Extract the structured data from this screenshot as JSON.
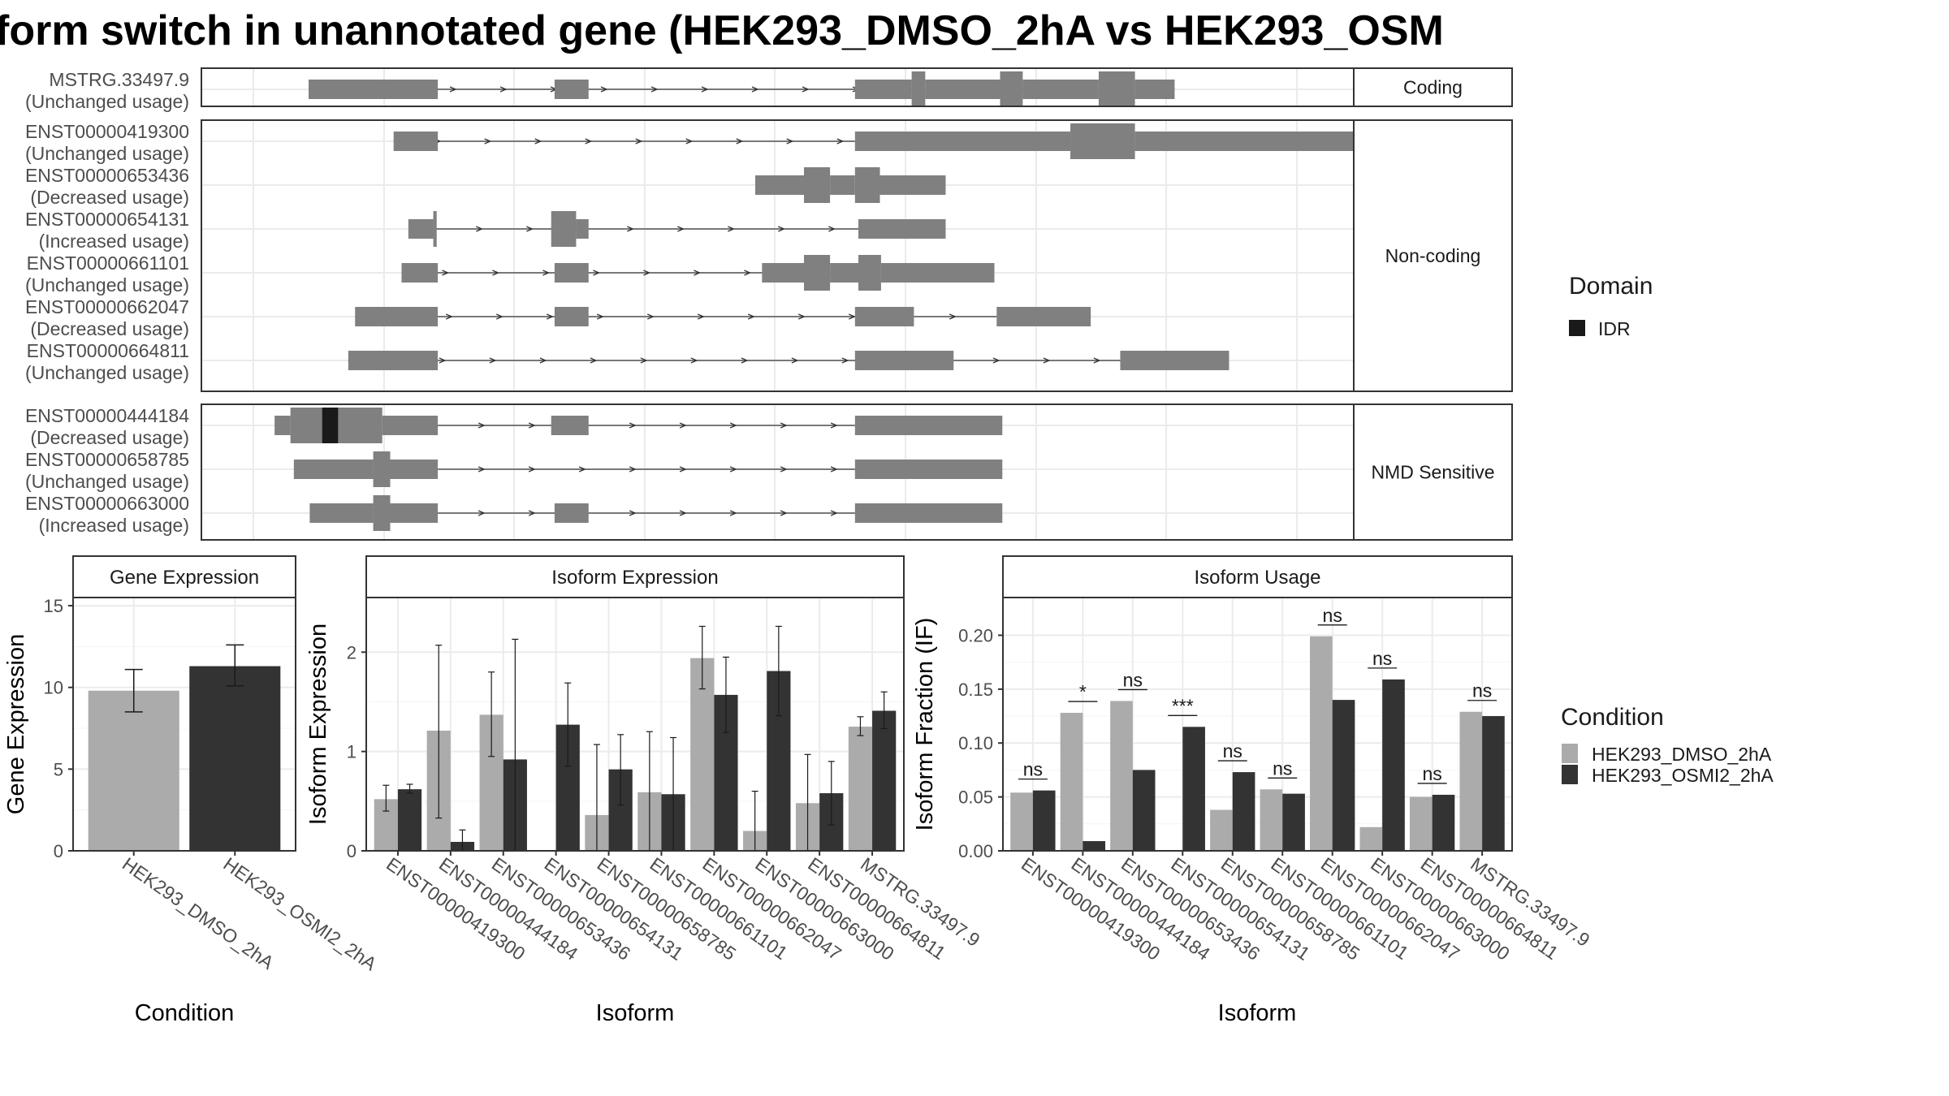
{
  "title": "form switch in unannotated gene (HEK293_DMSO_2hA vs HEK293_OSM",
  "colors": {
    "exon": "#808080",
    "idr": "#1a1a1a",
    "dmso": "#ababab",
    "osmi": "#333333",
    "grid": "#ebebeb",
    "frame": "#333333",
    "strip_bg": "#ffffff",
    "text": "#1a1a1a",
    "axis_text": "#4d4d4d"
  },
  "structure": {
    "xlim": [
      0,
      1000
    ],
    "groups": [
      {
        "label": "Coding",
        "transcripts": [
          {
            "id": "MSTRG.33497.9",
            "usage": "(Unchanged usage)",
            "intron": [
              78,
              795
            ],
            "exons": [
              [
                78,
                192,
                "t"
              ],
              [
                295,
                325,
                "t"
              ],
              [
                560,
                610,
                "t"
              ],
              [
                610,
                622,
                "c"
              ],
              [
                622,
                688,
                "t"
              ],
              [
                688,
                708,
                "c"
              ],
              [
                708,
                775,
                "t"
              ],
              [
                775,
                807,
                "c"
              ],
              [
                807,
                842,
                "t"
              ]
            ],
            "domains": []
          }
        ]
      },
      {
        "label": "Non-coding",
        "transcripts": [
          {
            "id": "ENST00000419300",
            "usage": "(Unchanged usage)",
            "intron": [
              153,
              560
            ],
            "exons": [
              [
                153,
                192,
                "t"
              ],
              [
                560,
                750,
                "t"
              ],
              [
                750,
                807,
                "c"
              ],
              [
                807,
                1000,
                "t"
              ]
            ],
            "domains": []
          },
          {
            "id": "ENST00000653436",
            "usage": "(Decreased usage)",
            "intron": [
              560,
              560
            ],
            "exons": [
              [
                472,
                515,
                "t"
              ],
              [
                515,
                538,
                "c"
              ],
              [
                538,
                560,
                "t"
              ],
              [
                560,
                582,
                "c"
              ],
              [
                582,
                640,
                "t"
              ]
            ],
            "domains": []
          },
          {
            "id": "ENST00000654131",
            "usage": "(Increased usage)",
            "intron": [
              190,
              563
            ],
            "exons": [
              [
                166,
                188,
                "t"
              ],
              [
                188,
                191,
                "c"
              ],
              [
                292,
                314,
                "c"
              ],
              [
                314,
                325,
                "t"
              ],
              [
                563,
                640,
                "t"
              ]
            ],
            "domains": []
          },
          {
            "id": "ENST00000661101",
            "usage": "(Unchanged usage)",
            "intron": [
              160,
              563
            ],
            "exons": [
              [
                160,
                192,
                "t"
              ],
              [
                295,
                325,
                "t"
              ],
              [
                478,
                515,
                "t"
              ],
              [
                515,
                538,
                "c"
              ],
              [
                538,
                563,
                "t"
              ],
              [
                563,
                583,
                "c"
              ],
              [
                583,
                683,
                "t"
              ]
            ],
            "domains": []
          },
          {
            "id": "ENST00000662047",
            "usage": "(Decreased usage)",
            "intron": [
              119,
              685
            ],
            "exons": [
              [
                119,
                192,
                "t"
              ],
              [
                295,
                325,
                "t"
              ],
              [
                560,
                612,
                "t"
              ],
              [
                685,
                768,
                "t"
              ]
            ],
            "domains": []
          },
          {
            "id": "ENST00000664811",
            "usage": "(Unchanged usage)",
            "intron": [
              113,
              794
            ],
            "exons": [
              [
                113,
                192,
                "t"
              ],
              [
                560,
                647,
                "t"
              ],
              [
                794,
                890,
                "t"
              ]
            ],
            "domains": []
          }
        ]
      },
      {
        "label": "NMD Sensitive",
        "transcripts": [
          {
            "id": "ENST00000444184",
            "usage": "(Decreased usage)",
            "intron": [
              192,
              560
            ],
            "exons": [
              [
                48,
                62,
                "t"
              ],
              [
                62,
                143,
                "c"
              ],
              [
                143,
                192,
                "t"
              ],
              [
                292,
                325,
                "t"
              ],
              [
                560,
                690,
                "t"
              ]
            ],
            "domains": [
              [
                90,
                104,
                "IDR"
              ]
            ]
          },
          {
            "id": "ENST00000658785",
            "usage": "(Unchanged usage)",
            "intron": [
              192,
              560
            ],
            "exons": [
              [
                65,
                135,
                "t"
              ],
              [
                135,
                150,
                "c"
              ],
              [
                150,
                192,
                "t"
              ],
              [
                560,
                690,
                "t"
              ]
            ],
            "domains": []
          },
          {
            "id": "ENST00000663000",
            "usage": "(Increased usage)",
            "intron": [
              192,
              560
            ],
            "exons": [
              [
                79,
                135,
                "t"
              ],
              [
                135,
                150,
                "c"
              ],
              [
                150,
                192,
                "t"
              ],
              [
                295,
                325,
                "t"
              ],
              [
                560,
                690,
                "t"
              ]
            ],
            "domains": []
          }
        ]
      }
    ]
  },
  "legend_domain": {
    "title": "Domain",
    "items": [
      "IDR"
    ]
  },
  "legend_condition": {
    "title": "Condition",
    "items": [
      "HEK293_DMSO_2hA",
      "HEK293_OSMI2_2hA"
    ]
  },
  "chart_data": [
    {
      "type": "bar",
      "strip": "Gene Expression",
      "ylabel": "Gene Expression",
      "xlabel": "Condition",
      "ylim": [
        0,
        15.5
      ],
      "yticks": [
        0,
        5,
        10,
        15
      ],
      "categories": [
        "HEK293_DMSO_2hA",
        "HEK293_OSMI2_2hA"
      ],
      "values": [
        9.8,
        11.3
      ],
      "errors": [
        [
          8.5,
          11.1
        ],
        [
          10.1,
          12.6
        ]
      ],
      "series_index": [
        0,
        1
      ]
    },
    {
      "type": "bar",
      "strip": "Isoform Expression",
      "ylabel": "Isoform Expression",
      "xlabel": "Isoform",
      "ylim": [
        0,
        2.55
      ],
      "yticks": [
        0,
        1,
        2
      ],
      "categories": [
        "ENST00000419300",
        "ENST00000444184",
        "ENST00000653436",
        "ENST00000654131",
        "ENST00000658785",
        "ENST00000661101",
        "ENST00000662047",
        "ENST00000663000",
        "ENST00000664811",
        "MSTRG.33497.9"
      ],
      "series": [
        {
          "name": "HEK293_DMSO_2hA",
          "values": [
            0.52,
            1.21,
            1.37,
            0.0,
            0.36,
            0.59,
            1.94,
            0.2,
            0.48,
            1.25
          ],
          "errors": [
            [
              0.4,
              0.66
            ],
            [
              0.33,
              2.07
            ],
            [
              0.95,
              1.8
            ],
            [
              0.0,
              0.0
            ],
            [
              0.0,
              1.07
            ],
            [
              0.0,
              1.2
            ],
            [
              1.63,
              2.26
            ],
            [
              0.0,
              0.6
            ],
            [
              0.0,
              0.97
            ],
            [
              1.16,
              1.35
            ]
          ]
        },
        {
          "name": "HEK293_OSMI2_2hA",
          "values": [
            0.62,
            0.09,
            0.92,
            1.27,
            0.82,
            0.57,
            1.57,
            1.81,
            0.58,
            1.41
          ],
          "errors": [
            [
              0.58,
              0.67
            ],
            [
              0.0,
              0.21
            ],
            [
              0.0,
              2.13
            ],
            [
              0.85,
              1.69
            ],
            [
              0.46,
              1.17
            ],
            [
              0.0,
              1.14
            ],
            [
              1.19,
              1.95
            ],
            [
              1.36,
              2.26
            ],
            [
              0.26,
              0.9
            ],
            [
              1.23,
              1.6
            ]
          ]
        }
      ]
    },
    {
      "type": "bar",
      "strip": "Isoform Usage",
      "ylabel": "Isoform Fraction (IF)",
      "xlabel": "Isoform",
      "ylim": [
        0,
        0.235
      ],
      "yticks": [
        0.0,
        0.05,
        0.1,
        0.15,
        0.2
      ],
      "ytick_labels": [
        "0.00",
        "0.05",
        "0.10",
        "0.15",
        "0.20"
      ],
      "categories": [
        "ENST00000419300",
        "ENST00000444184",
        "ENST00000653436",
        "ENST00000654131",
        "ENST00000658785",
        "ENST00000661101",
        "ENST00000662047",
        "ENST00000663000",
        "ENST00000664811",
        "MSTRG.33497.9"
      ],
      "series": [
        {
          "name": "HEK293_DMSO_2hA",
          "values": [
            0.054,
            0.128,
            0.139,
            0.0,
            0.038,
            0.057,
            0.199,
            0.022,
            0.05,
            0.129
          ]
        },
        {
          "name": "HEK293_OSMI2_2hA",
          "values": [
            0.056,
            0.009,
            0.075,
            0.115,
            0.073,
            0.053,
            0.14,
            0.159,
            0.052,
            0.125
          ]
        }
      ],
      "significance": [
        "ns",
        "*",
        "ns",
        "***",
        "ns",
        "ns",
        "ns",
        "ns",
        "ns",
        "ns"
      ]
    }
  ]
}
